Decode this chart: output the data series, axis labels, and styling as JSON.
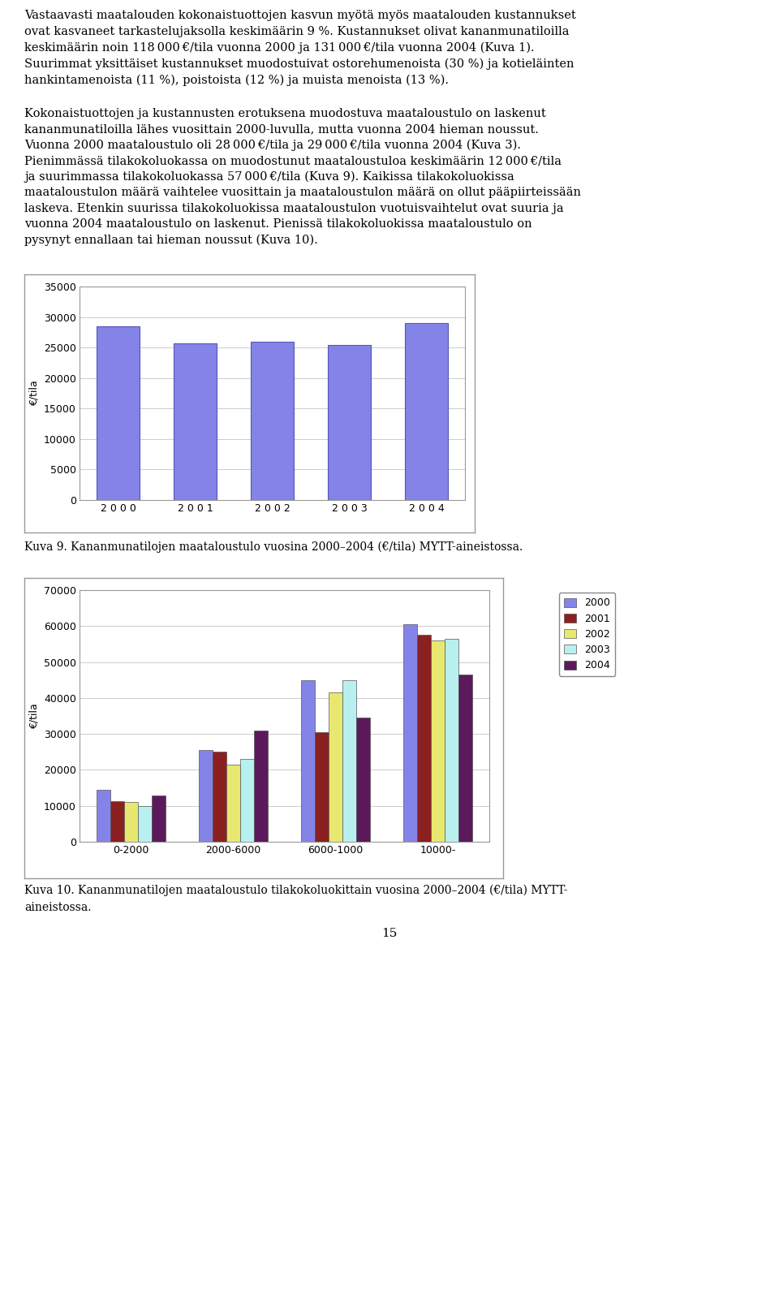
{
  "para1_lines": [
    "Vastaavasti maatalouden kokonaistuottojen kasvun myötä myös maatalouden kustannukset",
    "ovat kasvaneet tarkastelujaksolla keskimäärin 9 %. Kustannukset olivat kananmunatiloilla",
    "keskimäärin noin 118 000 €/tila vuonna 2000 ja 131 000 €/tila vuonna 2004 (Kuva 1).",
    "Suurimmat yksittäiset kustannukset muodostuivat ostorehumenoista (30 %) ja kotieläinten",
    "hankintamenoista (11 %), poistoista (12 %) ja muista menoista (13 %)."
  ],
  "para2_lines": [
    "Kokonaistuottojen ja kustannusten erotuksena muodostuva maataloustulo on laskenut",
    "kananmunatiloilla lähes vuosittain 2000-luvulla, mutta vuonna 2004 hieman noussut.",
    "Vuonna 2000 maataloustulo oli 28 000 €/tila ja 29 000 €/tila vuonna 2004 (Kuva 3).",
    "Pienimmässä tilakokoluokassa on muodostunut maataloustuloa keskimäärin 12 000 €/tila",
    "ja suurimmassa tilakokoluokassa 57 000 €/tila (Kuva 9). Kaikissa tilakokoluokissa",
    "maataloustulon määrä vaihtelee vuosittain ja maataloustulon määrä on ollut pääpiirteissään",
    "laskeva. Etenkin suurissa tilakokoluokissa maataloustulon vuotuisvaihtelut ovat suuria ja",
    "vuonna 2004 maataloustulo on laskenut. Pienissä tilakokoluokissa maataloustulo on",
    "pysynyt ennallaan tai hieman noussut (Kuva 10)."
  ],
  "chart1": {
    "years": [
      "2 0 0 0",
      "2 0 0 1",
      "2 0 0 2",
      "2 0 0 3",
      "2 0 0 4"
    ],
    "values": [
      28500,
      25700,
      26000,
      25400,
      29000
    ],
    "bar_color": "#8484e8",
    "bar_edge_color": "#5555bb",
    "ylabel": "€/tila",
    "ylim": [
      0,
      35000
    ],
    "yticks": [
      0,
      5000,
      10000,
      15000,
      20000,
      25000,
      30000,
      35000
    ],
    "grid_color": "#cccccc"
  },
  "chart1_caption": "Kuva 9. Kananmunatilojen maataloustulo vuosina 2000–2004 (€/tila) MYTT-aineistossa.",
  "chart2": {
    "categories": [
      "0-2000",
      "2000-6000",
      "6000-1000",
      "10000-"
    ],
    "series_names": [
      "2000",
      "2001",
      "2002",
      "2003",
      "2004"
    ],
    "series": {
      "2000": [
        14500,
        25500,
        45000,
        60500
      ],
      "2001": [
        11200,
        25000,
        30500,
        57500
      ],
      "2002": [
        11000,
        21500,
        41500,
        56000
      ],
      "2003": [
        10000,
        23000,
        45000,
        56500
      ],
      "2004": [
        12800,
        31000,
        34500,
        46500
      ]
    },
    "colors": {
      "2000": "#8484e8",
      "2001": "#8b2020",
      "2002": "#e8e870",
      "2003": "#b8f0f0",
      "2004": "#5c1a5c"
    },
    "ylabel": "€/tila",
    "ylim": [
      0,
      70000
    ],
    "yticks": [
      0,
      10000,
      20000,
      30000,
      40000,
      50000,
      60000,
      70000
    ],
    "grid_color": "#cccccc"
  },
  "chart2_caption_line1": "Kuva 10. Kananmunatilojen maataloustulo tilakokoluokittain vuosina 2000–2004 (€/tila) MYTT-",
  "chart2_caption_line2": "aineistossa.",
  "page_number": "15",
  "bg": "#ffffff",
  "fg": "#000000",
  "fs_body": 10.5,
  "fs_axis": 9,
  "fs_caption": 10
}
